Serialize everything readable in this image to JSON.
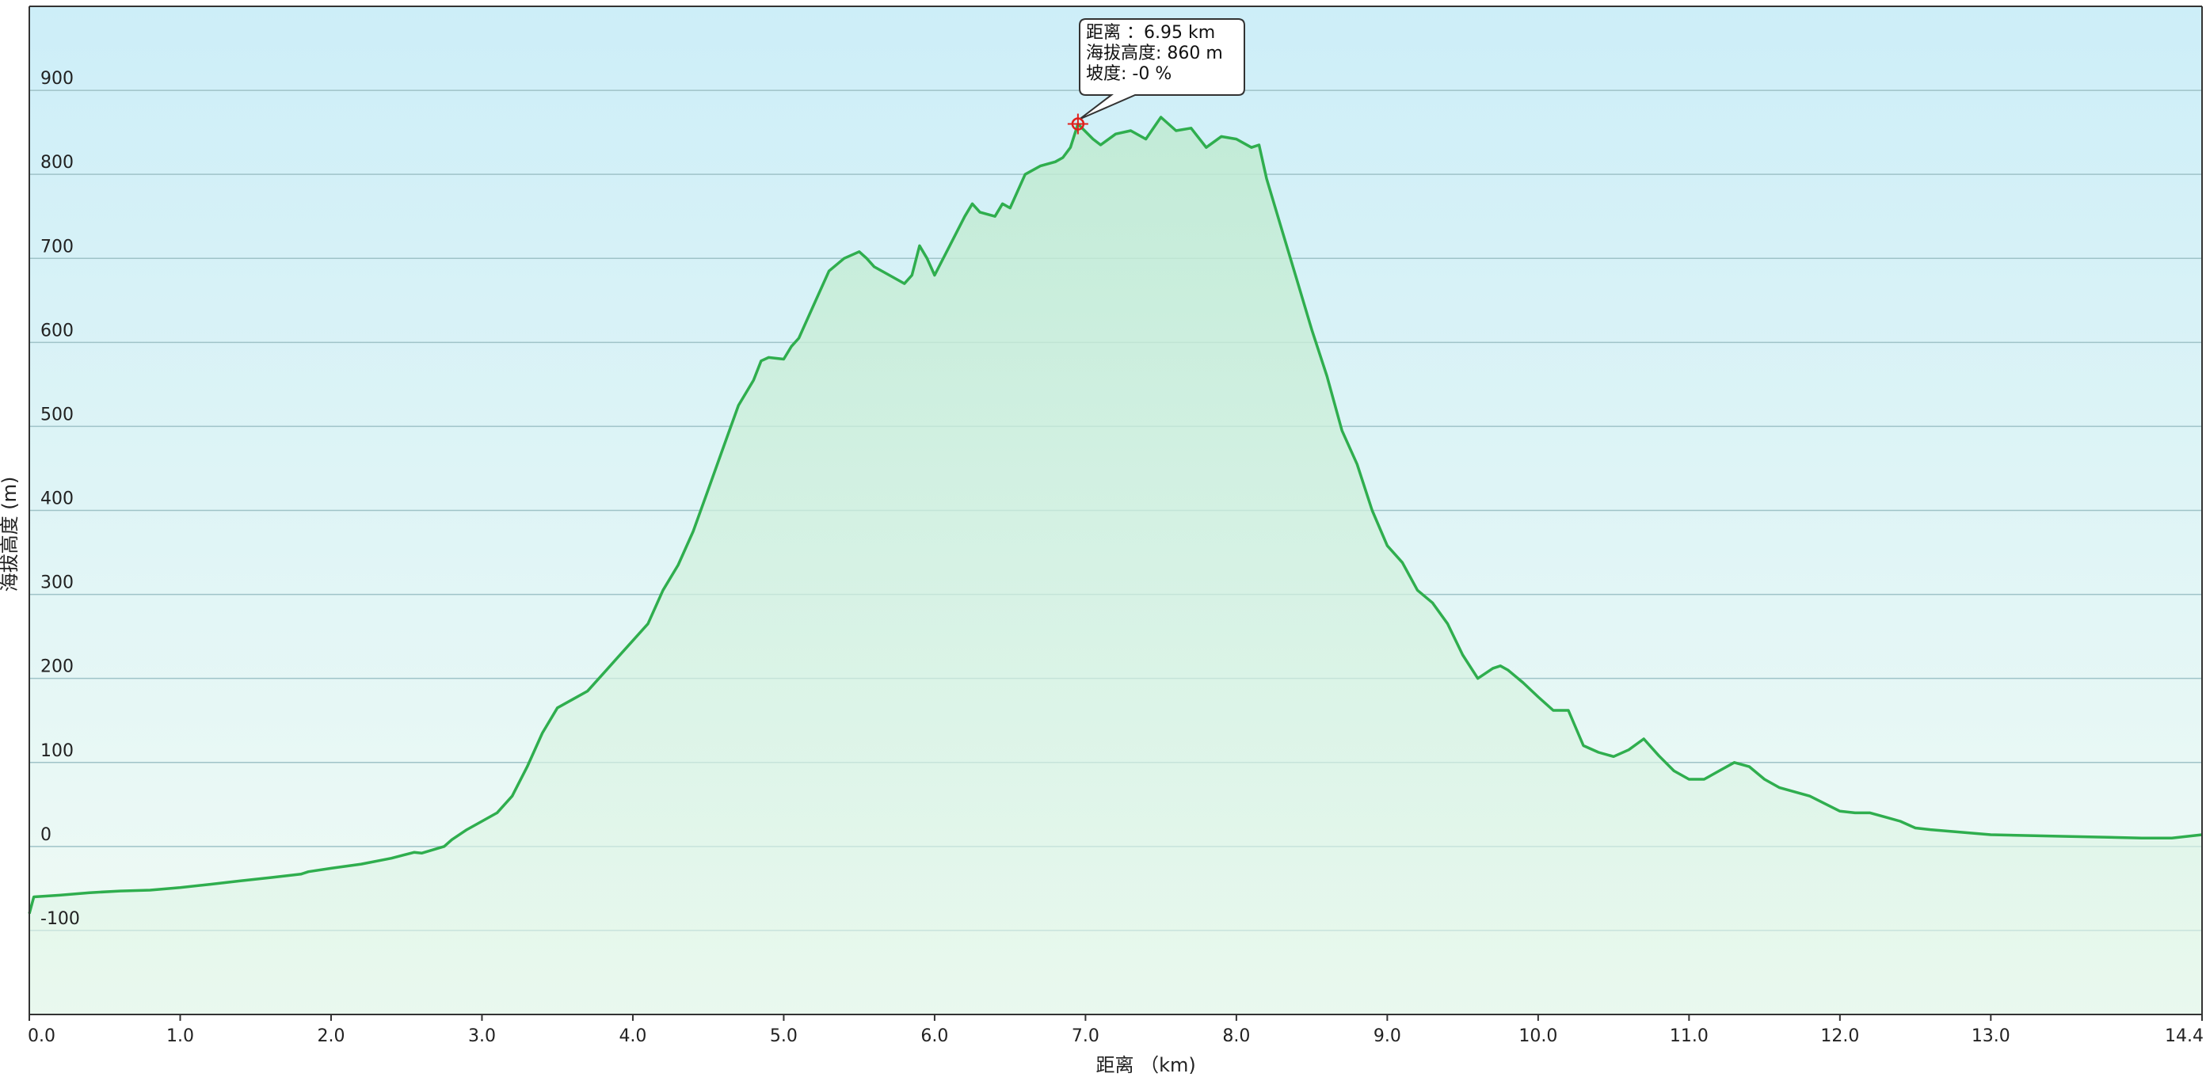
{
  "chart_data": {
    "type": "area",
    "xlabel": "距离 （km)",
    "ylabel": "海拔高度 (m)",
    "xlim": [
      0,
      14.4
    ],
    "ylim": [
      -200,
      1000
    ],
    "grid": true,
    "x_ticks": [
      "0.0",
      "1.0",
      "2.0",
      "3.0",
      "4.0",
      "5.0",
      "6.0",
      "7.0",
      "8.0",
      "9.0",
      "10.0",
      "11.0",
      "12.0",
      "13.0",
      "14.4"
    ],
    "x_tick_values": [
      0,
      1,
      2,
      3,
      4,
      5,
      6,
      7,
      8,
      9,
      10,
      11,
      12,
      13,
      14.4
    ],
    "y_ticks": [
      "900",
      "800",
      "700",
      "600",
      "500",
      "400",
      "300",
      "200",
      "100",
      "0",
      "-100"
    ],
    "y_tick_values": [
      900,
      800,
      700,
      600,
      500,
      400,
      300,
      200,
      100,
      0,
      -100
    ],
    "colors": {
      "line": "#2fae4e",
      "marker": "#e0201c",
      "bg_top": "#cdeef8",
      "bg_bottom": "#f1fbf4",
      "fill": "#bfead1",
      "grid": "#9fc3c8"
    },
    "series": [
      {
        "x": [
          0,
          0.03,
          0.2,
          0.4,
          0.6,
          0.8,
          1.0,
          1.2,
          1.4,
          1.6,
          1.8,
          1.85,
          2.0,
          2.2,
          2.4,
          2.55,
          2.6,
          2.75,
          2.8,
          2.9,
          3.0,
          3.1,
          3.2,
          3.3,
          3.4,
          3.5,
          3.6,
          3.7,
          3.8,
          3.9,
          4.0,
          4.1,
          4.2,
          4.3,
          4.4,
          4.5,
          4.6,
          4.7,
          4.8,
          4.85,
          4.9,
          5.0,
          5.05,
          5.1,
          5.2,
          5.3,
          5.4,
          5.5,
          5.55,
          5.6,
          5.7,
          5.8,
          5.85,
          5.9,
          5.95,
          6.0,
          6.1,
          6.2,
          6.25,
          6.3,
          6.4,
          6.45,
          6.5,
          6.6,
          6.7,
          6.8,
          6.85,
          6.9,
          6.95,
          7.05,
          7.1,
          7.2,
          7.3,
          7.4,
          7.5,
          7.6,
          7.7,
          7.8,
          7.9,
          8.0,
          8.1,
          8.15,
          8.2,
          8.3,
          8.4,
          8.5,
          8.6,
          8.7,
          8.8,
          8.9,
          9.0,
          9.1,
          9.2,
          9.3,
          9.4,
          9.5,
          9.6,
          9.7,
          9.75,
          9.8,
          9.9,
          10.0,
          10.1,
          10.2,
          10.3,
          10.4,
          10.5,
          10.6,
          10.7,
          10.8,
          10.9,
          11.0,
          11.1,
          11.2,
          11.3,
          11.4,
          11.5,
          11.6,
          11.8,
          12.0,
          12.1,
          12.2,
          12.3,
          12.4,
          12.5,
          12.6,
          13.0,
          13.5,
          14.0,
          14.2,
          14.4
        ],
        "values": [
          -80,
          -60,
          -58,
          -55,
          -53,
          -52,
          -49,
          -45,
          -41,
          -37,
          -33,
          -30,
          -26,
          -21,
          -14,
          -7,
          -8,
          0,
          8,
          20,
          30,
          40,
          60,
          95,
          135,
          165,
          175,
          185,
          205,
          225,
          245,
          265,
          305,
          335,
          375,
          425,
          475,
          525,
          555,
          578,
          582,
          580,
          595,
          605,
          645,
          685,
          700,
          708,
          700,
          690,
          680,
          670,
          680,
          715,
          700,
          680,
          715,
          750,
          765,
          755,
          750,
          765,
          760,
          800,
          810,
          815,
          820,
          832,
          860,
          842,
          835,
          848,
          852,
          842,
          868,
          852,
          855,
          832,
          845,
          842,
          832,
          835,
          795,
          735,
          675,
          615,
          560,
          495,
          455,
          400,
          358,
          338,
          305,
          290,
          265,
          228,
          200,
          212,
          215,
          210,
          195,
          178,
          162,
          162,
          120,
          112,
          107,
          115,
          128,
          108,
          90,
          80,
          80,
          90,
          100,
          95,
          80,
          70,
          60,
          42,
          40,
          40,
          35,
          30,
          22,
          20,
          14,
          12,
          10,
          10,
          14
        ]
      }
    ],
    "tooltip": {
      "line1": "距离 ：6.95 km",
      "line2": "海拔高度: 860 m",
      "line3": "坡度: -0 %",
      "x": 6.95,
      "y": 860
    }
  }
}
